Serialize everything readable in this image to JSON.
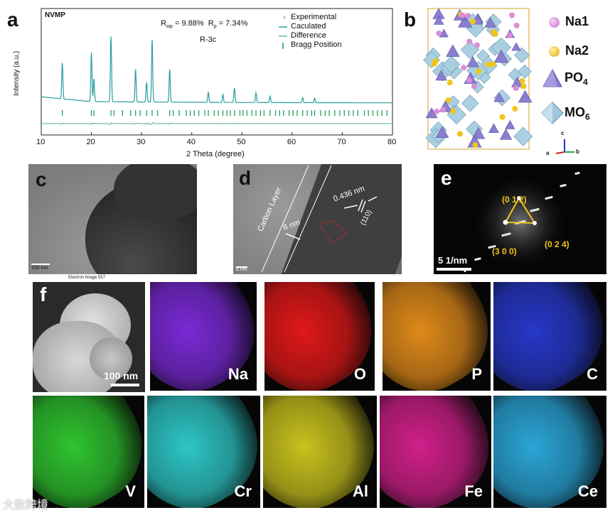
{
  "panels": {
    "a": {
      "label": "a",
      "sample": "NVMP",
      "rwp_text": "R",
      "rwp_sub": "wp",
      "rwp_value": " = 9.88%",
      "rp_text": "R",
      "rp_sub": "p",
      "rp_value": " = 7.34%",
      "space_group": "R-3c",
      "legend": [
        "Experimental",
        "Caculated",
        "Difference",
        "Bragg Position"
      ],
      "xlabel": "2 Theta (degree)",
      "ylabel": "Intensity (a.u.)",
      "xticks": [
        "10",
        "20",
        "30",
        "40",
        "50",
        "60",
        "70",
        "80"
      ],
      "colors": {
        "calc": "#2a9d9d",
        "exp": "#6fb7c9",
        "diff": "#1f8f7f",
        "bragg": "#22a05a"
      }
    },
    "b": {
      "label": "b",
      "legend": [
        {
          "name": "Na1",
          "symbol": "sphere",
          "color": "#d98fd6"
        },
        {
          "name": "Na2",
          "symbol": "sphere",
          "color": "#f0c419"
        },
        {
          "name": "PO",
          "sub": "4",
          "symbol": "tetrahedron",
          "color": "#8a7fcf"
        },
        {
          "name": "MO",
          "sub": "6",
          "symbol": "octahedron",
          "color": "#9fc8dc"
        }
      ],
      "axes": [
        "c",
        "a",
        "b"
      ]
    },
    "c": {
      "label": "c",
      "scalebar": "100 nm"
    },
    "d": {
      "label": "d",
      "layer_text": "Carbon Layer",
      "thickness": "8 nm",
      "d_spacing": "0.436 nm",
      "plane": "(110)",
      "scalebar": "5 nm"
    },
    "e": {
      "label": "e",
      "spots": [
        "(0 1 2)",
        "(3 0 0)",
        "(0 2 4)"
      ],
      "scalebar": "5 1/nm",
      "spot_color": "#f0c419"
    },
    "f": {
      "label": "f",
      "title": "Electron Image 557",
      "scalebar": "100 nm",
      "maps": [
        {
          "el": "Na",
          "color": "#7a2ad6"
        },
        {
          "el": "O",
          "color": "#e01818"
        },
        {
          "el": "P",
          "color": "#e08a1a"
        },
        {
          "el": "C",
          "color": "#2638c8"
        },
        {
          "el": "V",
          "color": "#2fc42f"
        },
        {
          "el": "Cr",
          "color": "#2ec6c6"
        },
        {
          "el": "Al",
          "color": "#c9c21e"
        },
        {
          "el": "Fe",
          "color": "#d0208a"
        },
        {
          "el": "Ce",
          "color": "#2aa6d8"
        }
      ]
    }
  },
  "watermark": "大数跨境"
}
